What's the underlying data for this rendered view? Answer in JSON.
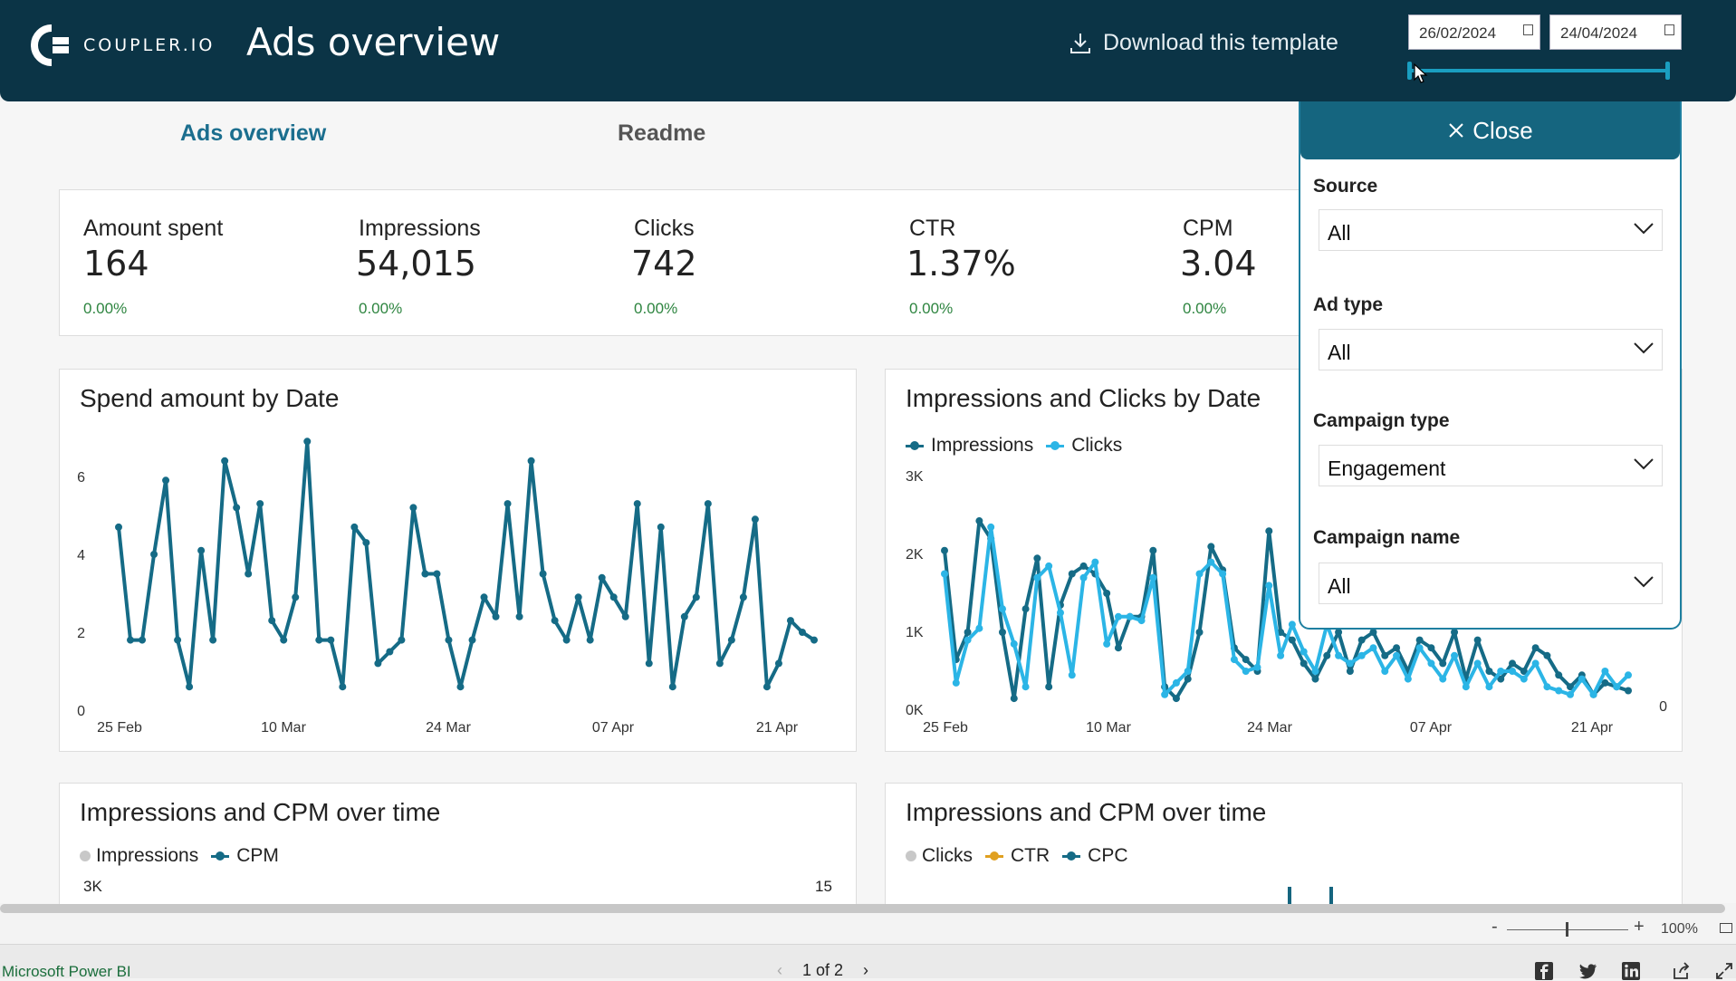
{
  "header": {
    "logo_text": "COUPLER.IO",
    "title": "Ads overview",
    "download_label": "Download this template",
    "date_start": "26/02/2024",
    "date_end": "24/04/2024"
  },
  "tabs": [
    {
      "label": "Ads overview",
      "active": true
    },
    {
      "label": "Readme",
      "active": false
    }
  ],
  "kpis": [
    {
      "label": "Amount spent",
      "value": "164",
      "delta": "0.00%"
    },
    {
      "label": "Impressions",
      "value": "54,015",
      "delta": "0.00%"
    },
    {
      "label": "Clicks",
      "value": "742",
      "delta": "0.00%"
    },
    {
      "label": "CTR",
      "value": "1.37%",
      "delta": "0.00%"
    },
    {
      "label": "CPM",
      "value": "3.04",
      "delta": "0.00%"
    }
  ],
  "filter_panel": {
    "close_label": "Close",
    "filters": [
      {
        "label": "Source",
        "value": "All"
      },
      {
        "label": "Ad type",
        "value": "All"
      },
      {
        "label": "Campaign type",
        "value": "Engagement"
      },
      {
        "label": "Campaign name",
        "value": "All"
      }
    ]
  },
  "cards": {
    "bottom_left_title": "Impressions and CPM over time",
    "bottom_left_legend": [
      "Impressions",
      "CPM"
    ],
    "bottom_left_axis_left": "3K",
    "bottom_left_axis_right": "15",
    "bottom_right_title": "Impressions and CPM over time",
    "bottom_right_legend": [
      "Clicks",
      "CTR",
      "CPC"
    ]
  },
  "colors": {
    "header_bg": "#0b3446",
    "accent_dark": "#15657f",
    "series_dark": "#156b86",
    "series_light": "#2bb5e6",
    "positive": "#2e8540",
    "ctr_orange": "#e0a020",
    "impressions_grey": "#c8c8c8"
  },
  "zoom": {
    "level": "100%"
  },
  "footer": {
    "brand": "Microsoft Power BI",
    "page_indicator": "1 of 2"
  },
  "chart_data": [
    {
      "type": "line",
      "title": "Spend amount by Date",
      "xlabel": "",
      "ylabel": "",
      "x_ticks": [
        "25 Feb",
        "10 Mar",
        "24 Mar",
        "07 Apr",
        "21 Apr"
      ],
      "y_ticks": [
        "0",
        "2",
        "4",
        "6"
      ],
      "ylim": [
        0,
        7
      ],
      "x_start": "2024-02-26",
      "x_end": "2024-04-24",
      "grid": false,
      "series": [
        {
          "name": "",
          "values": [
            4.7,
            1.8,
            1.8,
            4.0,
            5.9,
            1.8,
            0.6,
            4.1,
            1.8,
            6.4,
            5.2,
            3.5,
            5.3,
            2.3,
            1.8,
            2.9,
            6.9,
            1.8,
            1.8,
            0.6,
            4.7,
            4.3,
            1.2,
            1.5,
            1.8,
            5.2,
            3.5,
            3.5,
            1.8,
            0.6,
            1.8,
            2.9,
            2.4,
            5.3,
            2.4,
            6.4,
            3.5,
            2.3,
            1.8,
            2.9,
            1.8,
            3.4,
            2.9,
            2.4,
            5.3,
            1.2,
            4.7,
            0.6,
            2.4,
            2.9,
            5.3,
            1.2,
            1.8,
            2.9,
            4.9,
            0.6,
            1.2,
            2.3,
            2.0,
            1.8
          ]
        }
      ]
    },
    {
      "type": "line",
      "title": "Impressions and Clicks by Date",
      "x_ticks": [
        "25 Feb",
        "10 Mar",
        "24 Mar",
        "07 Apr",
        "21 Apr"
      ],
      "y_ticks": [
        "0K",
        "1K",
        "2K",
        "3K"
      ],
      "y2_ticks": [
        "0"
      ],
      "ylim": [
        0,
        3000
      ],
      "x_start": "2024-02-26",
      "x_end": "2024-04-24",
      "legend": "top-left",
      "series": [
        {
          "name": "Impressions",
          "values": [
            2050,
            650,
            1000,
            2430,
            2200,
            1000,
            150,
            1300,
            1950,
            300,
            1350,
            1750,
            1850,
            1750,
            1500,
            800,
            1200,
            1200,
            2050,
            300,
            150,
            400,
            1000,
            2100,
            1800,
            800,
            650,
            500,
            2300,
            1000,
            900,
            600,
            400,
            700,
            1000,
            500,
            900,
            1000,
            700,
            800,
            500,
            900,
            800,
            600,
            1000,
            400,
            900,
            500,
            400,
            600,
            500,
            800,
            700,
            450,
            300,
            450,
            200,
            350,
            300,
            250
          ]
        },
        {
          "name": "Clicks",
          "values": [
            1750,
            350,
            900,
            1050,
            2350,
            1300,
            850,
            300,
            1700,
            1850,
            1250,
            450,
            1700,
            1900,
            850,
            1200,
            1200,
            1150,
            1700,
            200,
            350,
            500,
            1750,
            1900,
            1750,
            650,
            500,
            550,
            1600,
            700,
            1100,
            750,
            500,
            1100,
            700,
            600,
            700,
            800,
            500,
            700,
            400,
            800,
            600,
            400,
            700,
            300,
            600,
            300,
            500,
            500,
            400,
            600,
            300,
            250,
            200,
            400,
            200,
            500,
            300,
            450
          ]
        }
      ]
    }
  ]
}
